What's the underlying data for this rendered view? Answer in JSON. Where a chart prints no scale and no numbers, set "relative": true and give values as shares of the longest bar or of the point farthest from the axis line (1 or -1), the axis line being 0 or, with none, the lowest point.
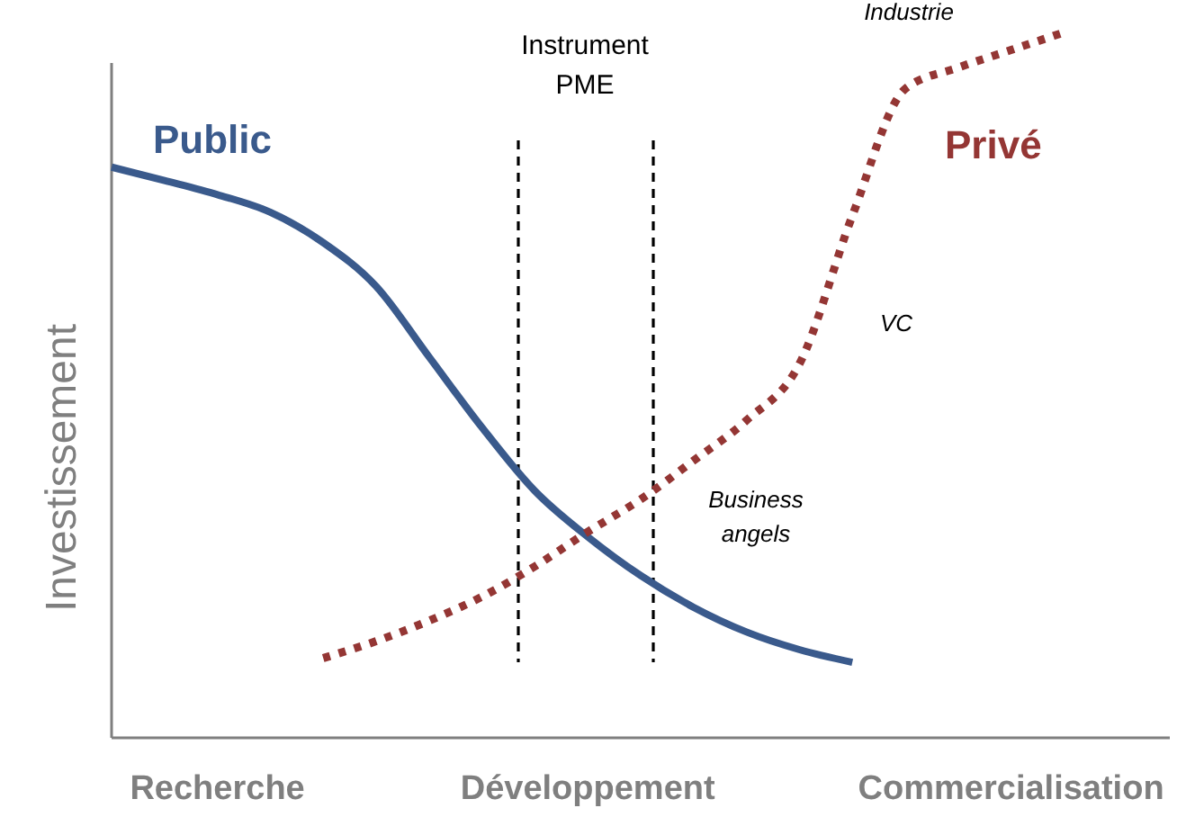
{
  "chart_data": {
    "type": "line",
    "relative": true,
    "ylabel": "Investissement",
    "categories": [
      null,
      null,
      "Recherche",
      null,
      null,
      null,
      null,
      null,
      null,
      "Développement",
      null,
      null,
      null,
      null,
      null,
      null,
      null,
      "Commercialisation",
      null,
      null,
      null
    ],
    "legend": false,
    "grid": false,
    "series": [
      {
        "name": "Public",
        "color": "#3a5a8c",
        "line_style": "solid",
        "values": [
          0.809,
          0.79,
          0.77,
          0.745,
          0.702,
          0.64,
          0.54,
          0.44,
          0.35,
          0.285,
          0.23,
          0.185,
          0.15,
          0.125,
          0.107,
          null,
          null,
          null,
          null,
          null,
          null
        ]
      },
      {
        "name": "Privé",
        "color": "#943634",
        "line_style": "dotted",
        "values": [
          null,
          null,
          null,
          null,
          0.113,
          0.137,
          0.166,
          0.2,
          0.243,
          0.292,
          0.338,
          0.393,
          0.45,
          0.53,
          0.74,
          0.92,
          0.95,
          0.975,
          1,
          null,
          null
        ]
      }
    ],
    "annotations": [
      "Instrument PME",
      "Business angels",
      "VC",
      "Industrie"
    ]
  }
}
